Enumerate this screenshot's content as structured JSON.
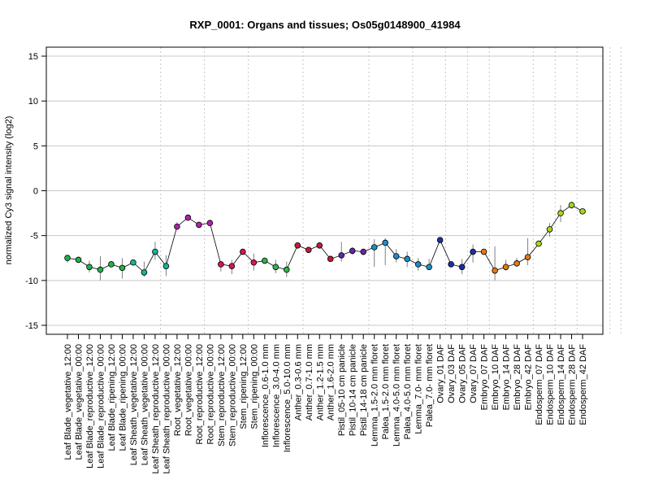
{
  "chart_data": {
    "type": "scatter",
    "title": "RXP_0001: Organs and tissues; Os05g0148900_41984",
    "ylabel": "normalized Cy3 signal intensity (log2)",
    "xlabel": "",
    "ylim": [
      -16,
      16
    ],
    "yticks": [
      15,
      10,
      5,
      0,
      -5,
      -10,
      -15
    ],
    "hgrid": [
      15,
      10,
      5,
      0,
      -5,
      -10,
      -15
    ],
    "group_boundaries_after_index": [
      8,
      12,
      16,
      21,
      27,
      31,
      34,
      36,
      38,
      42,
      44,
      46,
      49,
      50,
      54
    ],
    "categories": [
      "Leaf Blade_vegetative_12:00",
      "Leaf Blade_vegetative_00:00",
      "Leaf Blade_reproductive_12:00",
      "Leaf Blade_reproductive_00:00",
      "Leaf Blade_ripening_12:00",
      "Leaf Blade_ripening_00:00",
      "Leaf Sheath_vegetative_12:00",
      "Leaf Sheath_vegetative_00:00",
      "Leaf Sheath_reproductive_12:00",
      "Leaf Sheath_reproductive_00:00",
      "Root_vegetative_12:00",
      "Root_vegetative_00:00",
      "Root_reproductive_12:00",
      "Root_reproductive_00:00",
      "Stem_reproductive_12:00",
      "Stem_reproductive_00:00",
      "Stem_ripening_12:00",
      "Stem_ripening_00:00",
      "Inflorescence_0.6-1.0 mm",
      "Inflorescence_3.0-4.0 mm",
      "Inflorescence_5.0-10.0 mm",
      "Anther_0.3-0.6 mm",
      "Anther_0.7-1.0 mm",
      "Anther_1.2-1.5 mm",
      "Anther_1.6-2.0 mm",
      "Pistil_05-10 cm panicle",
      "Pistil_10-14 cm panicle",
      "Pistil_14-18 cm panicle",
      "Lemma_1.5-2.0 mm floret",
      "Palea_1.5-2.0 mm floret",
      "Lemma_4.0-5.0 mm floret",
      "Palea_4.0-5.0 mm floret",
      "Lemma_7.0- mm floret",
      "Palea_7.0- mm floret",
      "Ovary_01 DAF",
      "Ovary_03 DAF",
      "Ovary_05 DAF",
      "Ovary_07 DAF",
      "Embryo_07 DAF",
      "Embryo_10 DAF",
      "Embryo_14 DAF",
      "Embryo_28 DAF",
      "Embryo_42 DAF",
      "Endosperm_07 DAF",
      "Endosperm_10 DAF",
      "Endosperm_14 DAF",
      "Endosperm_28 DAF",
      "Endosperm_42 DAF"
    ],
    "values": [
      -7.5,
      -7.7,
      -8.5,
      -8.8,
      -8.2,
      -8.6,
      -8.0,
      -9.1,
      -6.8,
      -8.4,
      -4.0,
      -3.0,
      -3.8,
      -3.6,
      -8.2,
      -8.4,
      -6.8,
      -8.0,
      -7.8,
      -8.5,
      -8.8,
      -6.1,
      -6.6,
      -6.1,
      -7.6,
      -7.2,
      -6.7,
      -6.8,
      -6.3,
      -5.8,
      -7.3,
      -7.6,
      -8.2,
      -8.5,
      -5.5,
      -8.2,
      -8.5,
      -6.8,
      -6.8,
      -8.9,
      -8.5,
      -8.1,
      -7.4,
      -5.9,
      -4.3,
      -2.5,
      -1.6,
      -2.3
    ],
    "err_low": [
      -8.0,
      -7.9,
      -9.1,
      -10.0,
      -8.4,
      -9.8,
      -8.2,
      -9.6,
      -7.7,
      -9.5,
      -4.3,
      -3.2,
      -4.0,
      -3.8,
      -9.0,
      -9.3,
      -7.0,
      -8.9,
      -8.0,
      -9.2,
      -9.6,
      -6.3,
      -6.9,
      -6.3,
      -7.9,
      -7.9,
      -7.1,
      -7.2,
      -8.5,
      -8.3,
      -8.0,
      -8.5,
      -8.9,
      -8.8,
      -5.6,
      -8.4,
      -9.3,
      -8.0,
      -7.0,
      -10.0,
      -8.9,
      -8.5,
      -8.3,
      -6.2,
      -5.1,
      -3.5,
      -2.0,
      -2.5
    ],
    "err_high": [
      -7.2,
      -7.5,
      -7.8,
      -7.3,
      -8.0,
      -7.5,
      -7.8,
      -7.9,
      -5.7,
      -7.2,
      -3.5,
      -2.8,
      -3.5,
      -3.4,
      -8.0,
      -7.7,
      -6.6,
      -7.0,
      -7.6,
      -7.7,
      -7.9,
      -5.9,
      -6.3,
      -5.9,
      -7.3,
      -5.7,
      -6.3,
      -6.5,
      -5.4,
      -5.3,
      -6.5,
      -6.8,
      -7.5,
      -7.6,
      -5.3,
      -7.9,
      -7.6,
      -6.0,
      -6.6,
      -6.2,
      -7.7,
      -7.5,
      -5.3,
      -5.6,
      -3.6,
      -1.6,
      -1.2,
      -2.1
    ],
    "colors": [
      "#1db34a",
      "#1db34a",
      "#1db34a",
      "#1db34a",
      "#1db34a",
      "#1db34a",
      "#19b29a",
      "#19b29a",
      "#19b29a",
      "#19b29a",
      "#b21fb2",
      "#b21fb2",
      "#b21fb2",
      "#b21fb2",
      "#d6174e",
      "#d6174e",
      "#d6174e",
      "#d6174e",
      "#2db34a",
      "#2db34a",
      "#2db34a",
      "#c41a3a",
      "#c41a3a",
      "#c41a3a",
      "#c41a3a",
      "#6a22b0",
      "#6a22b0",
      "#6a22b0",
      "#1b8fc9",
      "#1b8fc9",
      "#1b8fc9",
      "#1b8fc9",
      "#1b8fc9",
      "#1b8fc9",
      "#1d2fa8",
      "#1d2fa8",
      "#1d2fa8",
      "#1d2fa8",
      "#e07b13",
      "#e07b13",
      "#e07b13",
      "#e07b13",
      "#e07b13",
      "#a6d61a",
      "#a6d61a",
      "#a6d61a",
      "#a6d61a",
      "#a6d61a"
    ],
    "grid": true,
    "line_color": "#000000",
    "errorbar_color": "#7f7f7f",
    "hgrid_color": "#c8c8c8",
    "vgrid_color": "#c8c8c8"
  }
}
